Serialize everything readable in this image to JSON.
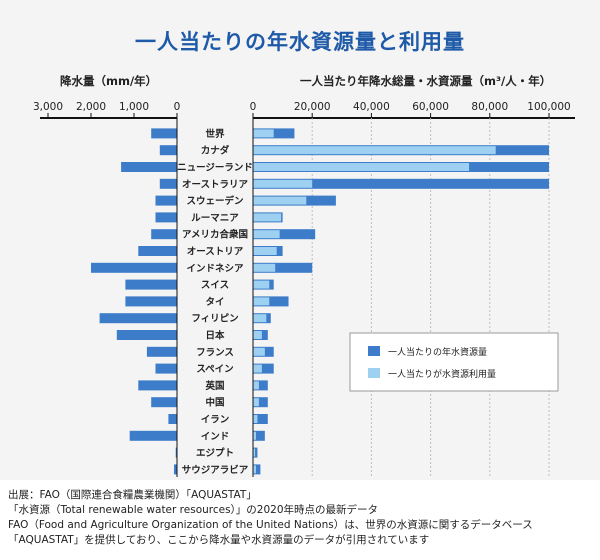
{
  "title": "一人当たりの年水資源量と利用量",
  "source": [
    "出展：FAO（国際連合食糧農業機関）「AQUASTAT」",
    "「水資源（Total renewable water resources）」の2020年時点の最新データ",
    "FAO（Food and Agriculture Organization of the United Nations）は、世界の水資源に関するデータベース",
    "「AQUASTAT」を提供しており、ここから降水量や水資源量のデータが引用されています"
  ],
  "colors": {
    "resources": "#3d7cc9",
    "usage": "#9ed0f2",
    "title": "#1e5aa8"
  },
  "chart_data": [
    {
      "type": "bar",
      "orientation": "horizontal",
      "direction": "reversed",
      "title": "降水量（mm/年）",
      "xlim": [
        0,
        3000
      ],
      "ticks": [
        "3,000",
        "2,000",
        "1,000",
        "0"
      ],
      "tick_values": [
        3000,
        2000,
        1000,
        0
      ],
      "categories": [
        "世界",
        "カナダ",
        "ニュージーランド",
        "オーストラリア",
        "スウェーデン",
        "ルーマニア",
        "アメリカ合衆国",
        "オーストリア",
        "インドネシア",
        "スイス",
        "タイ",
        "フィリピン",
        "日本",
        "フランス",
        "スペイン",
        "英国",
        "中国",
        "イラン",
        "インド",
        "エジプト",
        "サウジアラビア"
      ],
      "series": [
        {
          "values": [
            600,
            400,
            1300,
            400,
            500,
            500,
            600,
            900,
            2000,
            1200,
            1200,
            1800,
            1400,
            700,
            500,
            900,
            600,
            200,
            1100,
            30,
            70
          ]
        }
      ]
    },
    {
      "type": "bar",
      "orientation": "horizontal",
      "title": "一人当たり年降水総量・水資源量（m³/人・年）",
      "xlim": [
        0,
        100000
      ],
      "ticks": [
        "0",
        "20,000",
        "40,000",
        "60,000",
        "80,000",
        "100,000"
      ],
      "tick_values": [
        0,
        20000,
        40000,
        60000,
        80000,
        100000
      ],
      "categories": [
        "世界",
        "カナダ",
        "ニュージーランド",
        "オーストラリア",
        "スウェーデン",
        "ルーマニア",
        "アメリカ合衆国",
        "オーストリア",
        "インドネシア",
        "スイス",
        "タイ",
        "フィリピン",
        "日本",
        "フランス",
        "スペイン",
        "英国",
        "中国",
        "イラン",
        "インド",
        "エジプト",
        "サウジアラビア"
      ],
      "series": [
        {
          "name": "一人当たりの年水資源量",
          "values": [
            14000,
            100000,
            100000,
            100000,
            28000,
            10000,
            21000,
            10000,
            20000,
            7000,
            12000,
            6000,
            5000,
            7000,
            7000,
            5000,
            5000,
            5000,
            4000,
            1500,
            2500
          ]
        },
        {
          "name": "一人当たりが水資源利用量",
          "values": [
            7000,
            82000,
            73000,
            20000,
            18000,
            9500,
            9000,
            8000,
            7500,
            5500,
            5500,
            4500,
            3000,
            4000,
            3000,
            2000,
            2000,
            1500,
            1000,
            700,
            1000
          ]
        }
      ]
    }
  ]
}
